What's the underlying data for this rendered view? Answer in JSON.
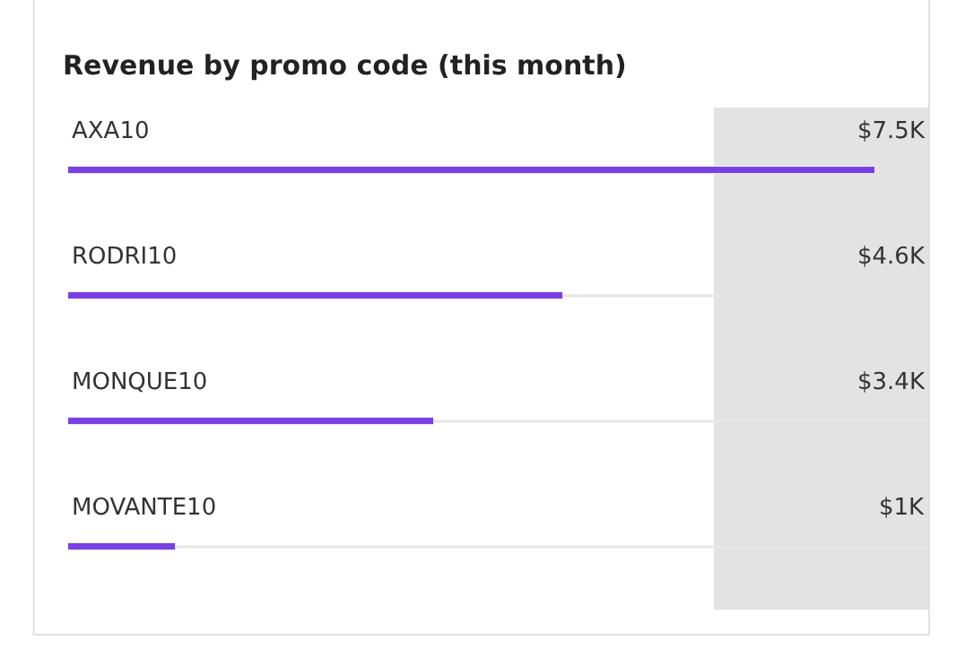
{
  "chart_data": {
    "type": "bar",
    "orientation": "horizontal",
    "title": "Revenue by promo code (this month)",
    "categories": [
      "AXA10",
      "RODRI10",
      "MONQUE10",
      "MOVANTE10"
    ],
    "values": [
      7.5,
      4.6,
      3.4,
      1
    ],
    "value_labels": [
      "$7.5K",
      "$4.6K",
      "$3.4K",
      "$1K"
    ],
    "color": "#7b3fe4",
    "xlim": [
      0,
      8
    ],
    "bands": [
      {
        "axis": "x",
        "from": 6,
        "to": 8,
        "color": "#e3e3e3"
      }
    ]
  }
}
